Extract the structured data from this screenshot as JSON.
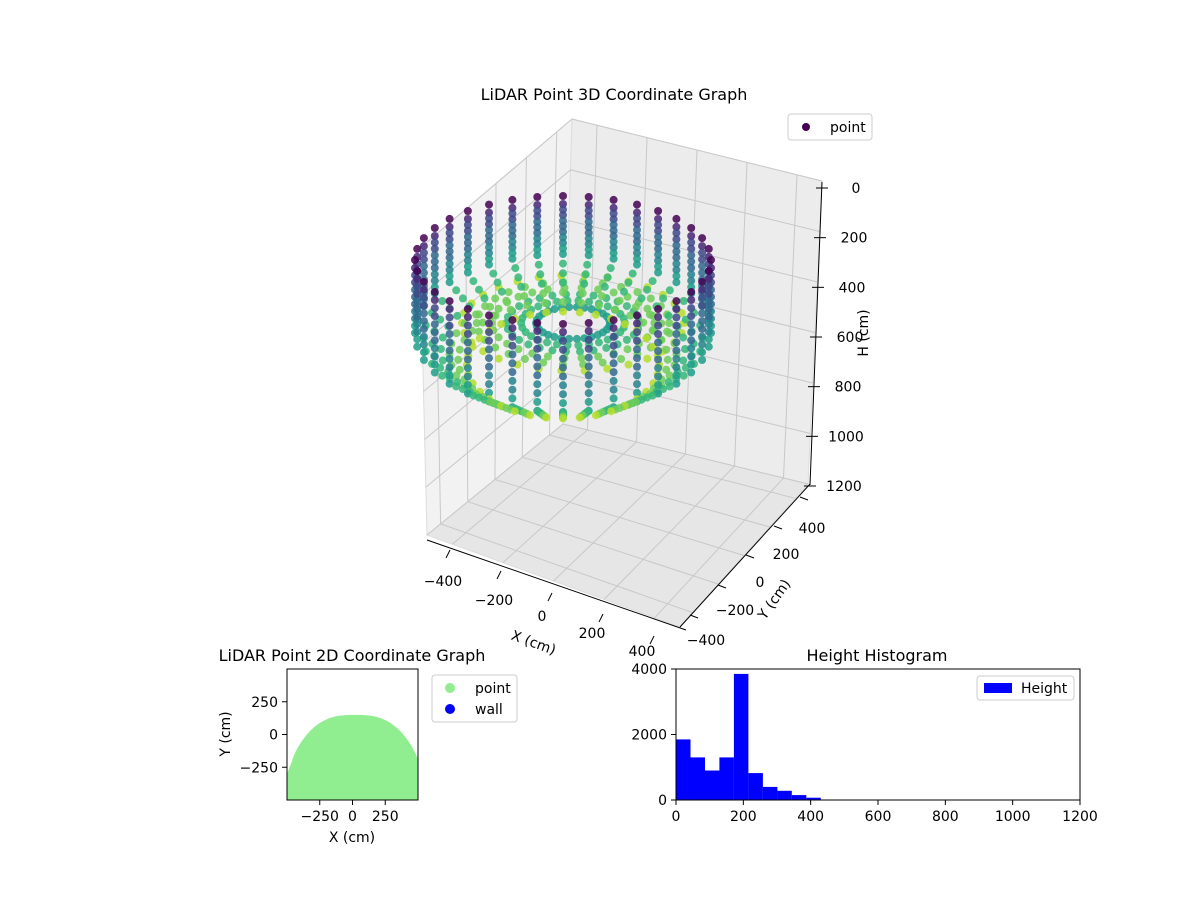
{
  "chart_data": [
    {
      "type": "scatter3d",
      "title": "LiDAR Point 3D Coordinate Graph",
      "xlabel": "X (cm)",
      "ylabel": "Y (cm)",
      "zlabel": "H (cm)",
      "xticks": [
        "−400",
        "−200",
        "0",
        "200",
        "400"
      ],
      "yticks": [
        "−400",
        "−200",
        "0",
        "200",
        "400"
      ],
      "zticks": [
        "0",
        "200",
        "400",
        "600",
        "800",
        "1000",
        "1200"
      ],
      "zlim": [
        0,
        1200
      ],
      "z_inverted": true,
      "colormap": "viridis",
      "legend": {
        "label": "point",
        "color": "#440154",
        "placement": "upper right"
      },
      "shape": "ring of vertical point strips around the origin, hanging from height 0 to about 700 cm",
      "ring_radius_cm": 500,
      "strips": 36
    },
    {
      "type": "scatter",
      "title": "LiDAR Point 2D Coordinate Graph",
      "xlabel": "X (cm)",
      "ylabel": "Y (cm)",
      "xticks": [
        "−250",
        "0",
        "250"
      ],
      "yticks": [
        "250",
        "0",
        "−250"
      ],
      "xlim": [
        -500,
        500
      ],
      "ylim": [
        -500,
        500
      ],
      "series": [
        {
          "name": "point",
          "color": "#90ee90"
        },
        {
          "name": "wall",
          "color": "#0000ff"
        }
      ],
      "legend_placement": "outside right"
    },
    {
      "type": "bar",
      "title": "Height Histogram",
      "xlim": [
        0,
        1200
      ],
      "ylim": [
        0,
        4000
      ],
      "xticks": [
        "0",
        "200",
        "400",
        "600",
        "800",
        "1000",
        "1200"
      ],
      "yticks": [
        "0",
        "2000",
        "4000"
      ],
      "bin_width": 43,
      "bins": [
        {
          "start": 0,
          "count": 1850
        },
        {
          "start": 43,
          "count": 1300
        },
        {
          "start": 86,
          "count": 900
        },
        {
          "start": 129,
          "count": 1300
        },
        {
          "start": 172,
          "count": 3850
        },
        {
          "start": 215,
          "count": 820
        },
        {
          "start": 258,
          "count": 400
        },
        {
          "start": 301,
          "count": 280
        },
        {
          "start": 344,
          "count": 150
        },
        {
          "start": 387,
          "count": 70
        }
      ],
      "series": [
        {
          "name": "Height",
          "color": "#0000ff"
        }
      ],
      "legend_placement": "upper right"
    }
  ]
}
